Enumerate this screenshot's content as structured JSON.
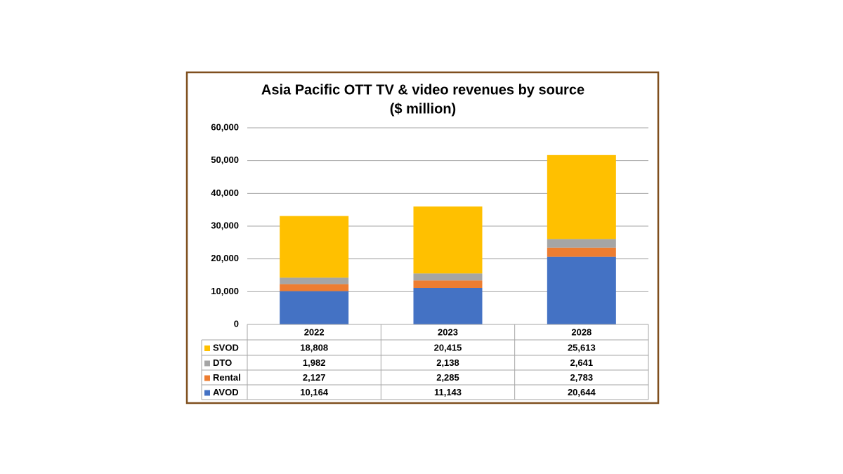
{
  "chart_data": {
    "type": "stacked_bar",
    "title": "Asia Pacific OTT TV & video revenues by source",
    "subtitle": "($ million)",
    "categories": [
      "2022",
      "2023",
      "2028"
    ],
    "series": [
      {
        "name": "AVOD",
        "color": "#4472c4",
        "values": [
          10164,
          11143,
          20644
        ],
        "value_labels": [
          "10,164",
          "11,143",
          "20,644"
        ]
      },
      {
        "name": "Rental",
        "color": "#ed7d31",
        "values": [
          2127,
          2285,
          2783
        ],
        "value_labels": [
          "2,127",
          "2,285",
          "2,783"
        ]
      },
      {
        "name": "DTO",
        "color": "#a5a5a5",
        "values": [
          1982,
          2138,
          2641
        ],
        "value_labels": [
          "1,982",
          "2,138",
          "2,641"
        ]
      },
      {
        "name": "SVOD",
        "color": "#ffc000",
        "values": [
          18808,
          20415,
          25613
        ],
        "value_labels": [
          "18,808",
          "20,415",
          "25,613"
        ]
      }
    ],
    "ylim": [
      0,
      60000
    ],
    "yticks": [
      0,
      {
        "value": 10000,
        "label": "10,000"
      },
      {
        "value": 20000,
        "label": "20,000"
      },
      {
        "value": 30000,
        "label": "30,000"
      },
      {
        "value": 40000,
        "label": "40,000"
      },
      {
        "value": 50000,
        "label": "50,000"
      },
      {
        "value": 60000,
        "label": "60,000"
      }
    ],
    "grid": true
  }
}
